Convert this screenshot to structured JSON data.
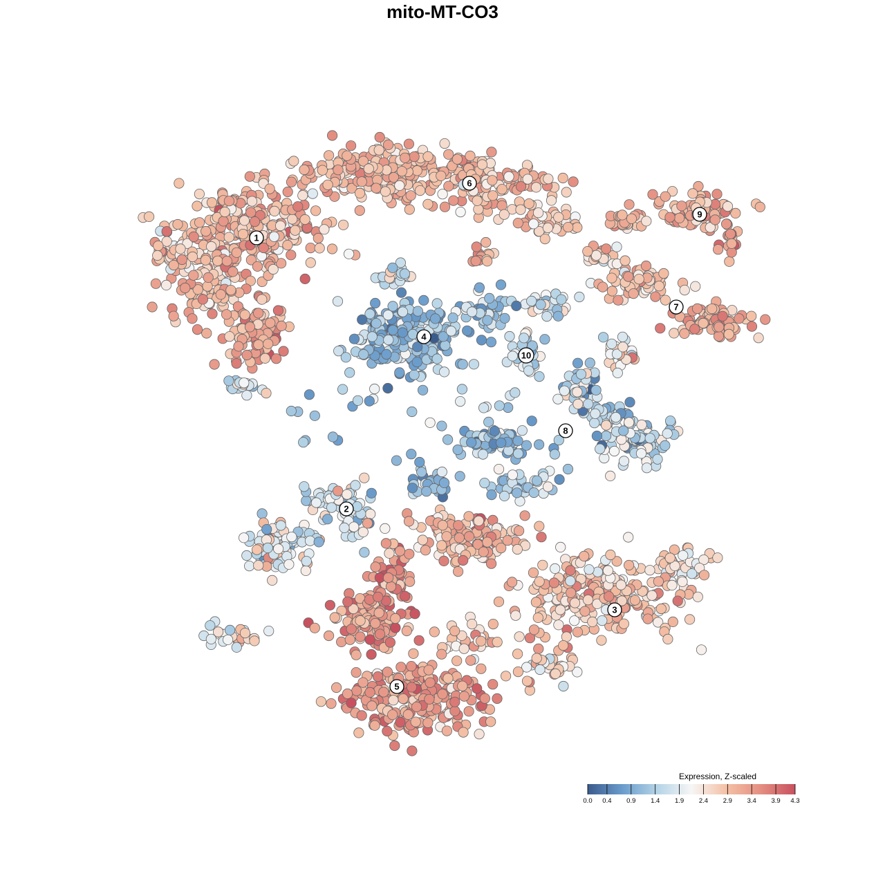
{
  "title": "mito-MT-CO3",
  "chart_data": {
    "type": "scatter",
    "title": "mito-MT-CO3",
    "xlabel": "",
    "ylabel": "",
    "grid": false,
    "legend_placement": "bottom-right",
    "color_legend": {
      "title": "Expression, Z-scaled",
      "min": 0.0,
      "max": 4.3,
      "ticks": [
        0.0,
        0.4,
        0.9,
        1.4,
        1.9,
        2.4,
        2.9,
        3.4,
        3.9,
        4.3
      ],
      "tick_labels": [
        "0.0",
        "0.4",
        "0.9",
        "1.4",
        "1.9",
        "2.4",
        "2.9",
        "3.4",
        "3.9",
        "4.3"
      ],
      "palette": [
        "#3b5b8c",
        "#6a9ccc",
        "#b4d3e6",
        "#f6f6f6",
        "#f4c1a6",
        "#e48f82",
        "#c8515f"
      ]
    },
    "clusters": [
      {
        "label": "1",
        "mean_expression": 3.0
      },
      {
        "label": "2",
        "mean_expression": 1.9
      },
      {
        "label": "3",
        "mean_expression": 2.8
      },
      {
        "label": "4",
        "mean_expression": 1.1
      },
      {
        "label": "5",
        "mean_expression": 3.3
      },
      {
        "label": "6",
        "mean_expression": 3.0
      },
      {
        "label": "7",
        "mean_expression": 3.2
      },
      {
        "label": "8",
        "mean_expression": 1.2
      },
      {
        "label": "9",
        "mean_expression": 3.2
      },
      {
        "label": "10",
        "mean_expression": 1.7
      }
    ]
  }
}
